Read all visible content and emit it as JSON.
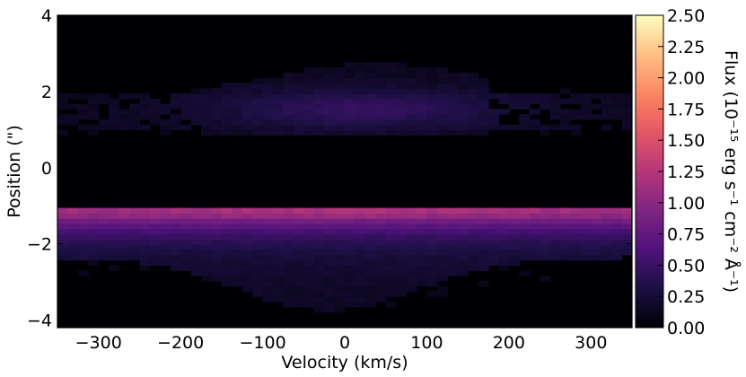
{
  "chart_data": {
    "type": "heatmap",
    "title": "",
    "xlabel": "Velocity (km/s)",
    "ylabel": "Position (\")",
    "xlim": [
      -350,
      350
    ],
    "ylim": [
      -4.2,
      4.0
    ],
    "x_ticks": [
      -300,
      -200,
      -100,
      0,
      100,
      200,
      300
    ],
    "x_tick_labels": [
      "−300",
      "−200",
      "−100",
      "0",
      "100",
      "200",
      "300"
    ],
    "y_ticks": [
      -4,
      -2,
      0,
      2,
      4
    ],
    "y_tick_labels": [
      "−4",
      "−2",
      "0",
      "2",
      "4"
    ],
    "colormap": "magma",
    "colorbar": {
      "label": "Flux (10⁻¹⁵ erg s⁻¹  cm⁻² Å⁻¹)",
      "range": [
        0.0,
        2.5
      ],
      "ticks": [
        0.0,
        0.25,
        0.5,
        0.75,
        1.0,
        1.25,
        1.5,
        1.75,
        2.0,
        2.25,
        2.5
      ],
      "tick_labels": [
        "0.00",
        "0.25",
        "0.50",
        "0.75",
        "1.00",
        "1.25",
        "1.50",
        "1.75",
        "2.00",
        "2.25",
        "2.50"
      ]
    },
    "grid": false,
    "features": [
      {
        "position_range": [
          0.8,
          2.8
        ],
        "velocity_range": [
          -350,
          350
        ],
        "flux_range": [
          0.05,
          0.4
        ]
      },
      {
        "position_range": [
          -1.35,
          -1.0
        ],
        "velocity_range": [
          -350,
          350
        ],
        "flux_range": [
          0.9,
          1.3
        ]
      },
      {
        "position_range": [
          -3.8,
          -1.35
        ],
        "velocity_range": [
          -350,
          350
        ],
        "flux_range": [
          0.1,
          0.9
        ]
      }
    ]
  }
}
